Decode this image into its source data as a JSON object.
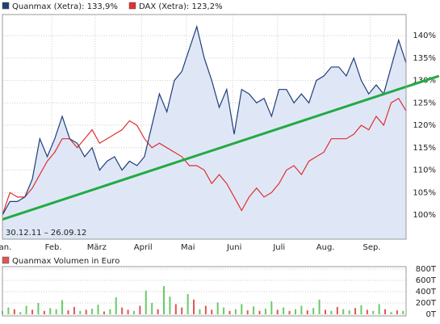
{
  "chart_data": [
    {
      "type": "line",
      "date_range": "30.12.11 – 26.09.12",
      "x": [
        0,
        5,
        10,
        15,
        20,
        25,
        30,
        35,
        40,
        45,
        50,
        55,
        60,
        65,
        70,
        75,
        80,
        85,
        90,
        95,
        100,
        105,
        110,
        115,
        120,
        125,
        130,
        135,
        140,
        145,
        150,
        155,
        160,
        165,
        170,
        175,
        180,
        185,
        190,
        195,
        200,
        205,
        210,
        215,
        220,
        225,
        230,
        235,
        240,
        245,
        250,
        255,
        260,
        265,
        270
      ],
      "series": [
        {
          "name": "Quanmax (Xetra): 133,9%",
          "color": "#1f3f7a",
          "fill": "#dfe7f6",
          "values": [
            100,
            103,
            103,
            104,
            108,
            117,
            113,
            117,
            122,
            117,
            116,
            113,
            115,
            110,
            112,
            113,
            110,
            112,
            111,
            113,
            120,
            127,
            123,
            130,
            132,
            137,
            142,
            135,
            130,
            124,
            128,
            118,
            128,
            127,
            125,
            126,
            122,
            128,
            128,
            125,
            127,
            125,
            130,
            131,
            133,
            133,
            131,
            135,
            130,
            127,
            129,
            127,
            133,
            139,
            133.9
          ]
        },
        {
          "name": "DAX (Xetra): 123,2%",
          "color": "#e03030",
          "values": [
            100,
            105,
            104,
            104,
            106,
            109,
            112,
            114,
            117,
            117,
            115,
            117,
            119,
            116,
            117,
            118,
            119,
            121,
            120,
            117,
            115,
            116,
            115,
            114,
            113,
            111,
            111,
            110,
            107,
            109,
            107,
            104,
            101,
            104,
            106,
            104,
            105,
            107,
            110,
            111,
            109,
            112,
            113,
            114,
            117,
            117,
            117,
            118,
            120,
            119,
            122,
            120,
            125,
            126,
            123.2
          ]
        }
      ],
      "trendline": {
        "x": [
          0,
          292
        ],
        "values": [
          99,
          131
        ],
        "color": "#22aa44"
      },
      "xlim": [
        0,
        270
      ],
      "xticks": [
        {
          "value": 0,
          "label": "Jan."
        },
        {
          "value": 33,
          "label": "Feb."
        },
        {
          "value": 62,
          "label": "März"
        },
        {
          "value": 93,
          "label": "April"
        },
        {
          "value": 123,
          "label": "Mai"
        },
        {
          "value": 154,
          "label": "Juni"
        },
        {
          "value": 184,
          "label": "Juli"
        },
        {
          "value": 215,
          "label": "Aug."
        },
        {
          "value": 246,
          "label": "Sep."
        }
      ],
      "ylim": [
        94.6,
        144.7
      ],
      "yticks": [
        {
          "value": 100,
          "label": "100%"
        },
        {
          "value": 105,
          "label": "105%"
        },
        {
          "value": 110,
          "label": "110%"
        },
        {
          "value": 115,
          "label": "115%"
        },
        {
          "value": 120,
          "label": "120%"
        },
        {
          "value": 125,
          "label": "125%"
        },
        {
          "value": 130,
          "label": "130%"
        },
        {
          "value": 135,
          "label": "135%"
        },
        {
          "value": 140,
          "label": "140%"
        }
      ],
      "grid": true
    },
    {
      "type": "bar",
      "title": "Quanmax Volumen in Euro",
      "legend_color": "#e05555",
      "x": [
        0,
        4,
        8,
        12,
        16,
        20,
        24,
        28,
        32,
        36,
        40,
        44,
        48,
        52,
        56,
        60,
        64,
        68,
        72,
        76,
        80,
        84,
        88,
        92,
        96,
        100,
        104,
        108,
        112,
        116,
        120,
        124,
        128,
        132,
        136,
        140,
        144,
        148,
        152,
        156,
        160,
        164,
        168,
        172,
        176,
        180,
        184,
        188,
        192,
        196,
        200,
        204,
        208,
        212,
        216,
        220,
        224,
        228,
        232,
        236,
        240,
        244,
        248,
        252,
        256,
        260,
        264,
        268
      ],
      "values": [
        60,
        120,
        90,
        40,
        150,
        80,
        200,
        60,
        110,
        90,
        250,
        70,
        130,
        60,
        80,
        100,
        170,
        50,
        90,
        300,
        120,
        80,
        60,
        150,
        420,
        200,
        90,
        500,
        310,
        180,
        120,
        360,
        260,
        90,
        150,
        80,
        210,
        120,
        60,
        90,
        180,
        70,
        140,
        60,
        100,
        230,
        80,
        120,
        60,
        90,
        150,
        70,
        110,
        260,
        80,
        60,
        130,
        90,
        70,
        110,
        160,
        80,
        60,
        180,
        90,
        40,
        70,
        60
      ],
      "colors": [
        "#66cc66",
        "#66cc66",
        "#e05555",
        "#66cc66",
        "#66cc66",
        "#e05555",
        "#66cc66",
        "#e05555",
        "#66cc66",
        "#66cc66",
        "#66cc66",
        "#e05555",
        "#e05555",
        "#66cc66",
        "#e05555",
        "#66cc66",
        "#66cc66",
        "#e05555",
        "#66cc66",
        "#66cc66",
        "#e05555",
        "#e05555",
        "#66cc66",
        "#e05555",
        "#66cc66",
        "#66cc66",
        "#e05555",
        "#66cc66",
        "#66cc66",
        "#e05555",
        "#e05555",
        "#66cc66",
        "#e05555",
        "#66cc66",
        "#e05555",
        "#e05555",
        "#66cc66",
        "#66cc66",
        "#e05555",
        "#66cc66",
        "#66cc66",
        "#e05555",
        "#66cc66",
        "#e05555",
        "#66cc66",
        "#66cc66",
        "#e05555",
        "#66cc66",
        "#e05555",
        "#66cc66",
        "#66cc66",
        "#e05555",
        "#66cc66",
        "#66cc66",
        "#e05555",
        "#66cc66",
        "#e05555",
        "#66cc66",
        "#66cc66",
        "#e05555",
        "#66cc66",
        "#e05555",
        "#66cc66",
        "#66cc66",
        "#e05555",
        "#66cc66",
        "#e05555",
        "#66cc66"
      ],
      "xlim": [
        0,
        270
      ],
      "ylim": [
        0,
        800
      ],
      "yticks": [
        {
          "value": 0,
          "label": "0T"
        },
        {
          "value": 200,
          "label": "200T"
        },
        {
          "value": 400,
          "label": "400T"
        },
        {
          "value": 600,
          "label": "600T"
        },
        {
          "value": 800,
          "label": "800T"
        }
      ]
    }
  ]
}
